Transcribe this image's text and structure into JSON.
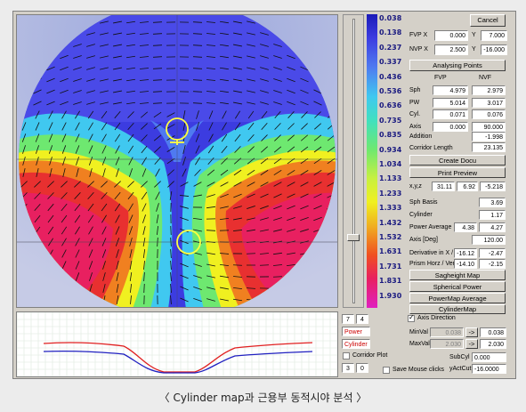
{
  "legend": {
    "values": [
      "0.038",
      "0.138",
      "0.237",
      "0.337",
      "0.436",
      "0.536",
      "0.636",
      "0.735",
      "0.835",
      "0.934",
      "1.034",
      "1.133",
      "1.233",
      "1.333",
      "1.432",
      "1.532",
      "1.631",
      "1.731",
      "1.831",
      "1.930"
    ]
  },
  "panel": {
    "cancel": "Cancel",
    "fvp_label": "FVP",
    "nvp_label": "NVP",
    "x_label": "X",
    "y_label": "Y",
    "fvp_x": "0.000",
    "fvp_y": "7.000",
    "nvp_x": "2.500",
    "nvp_y": "-16.000",
    "analysing": "Analysing Points",
    "col_fvp": "FVP",
    "col_nvf": "NVF",
    "rows": [
      {
        "label": "Sph",
        "a": "4.979",
        "b": "2.979"
      },
      {
        "label": "PW",
        "a": "5.014",
        "b": "3.017"
      },
      {
        "label": "Cyl.",
        "a": "0.071",
        "b": "0.076"
      },
      {
        "label": "Axis",
        "a": "0.000",
        "b": "90.000"
      }
    ],
    "addition_label": "Addition",
    "addition": "-1.998",
    "corridor_label": "Corridor Length",
    "corridor": "23.135",
    "create_docu": "Create Docu",
    "print_preview": "Print Preview",
    "xyz_label": "x,y,z",
    "x": "31.11",
    "y": "6.92",
    "z": "-5.218",
    "sph_basis_label": "Sph Basis",
    "sph_basis": "3.69",
    "cylinder_label": "Cylinder",
    "cylinder": "1.17",
    "power_avg_label": "Power Average",
    "power_avg_a": "4.38",
    "power_avg_b": "4.27",
    "axis_deg_label": "Axis [Deg]",
    "axis_deg": "120.00",
    "deriv_label": "Derivative in X / Y",
    "deriv_a": "-16.12",
    "deriv_b": "-2.47",
    "prism_label": "Prism Horz / Vert",
    "prism_a": "-14.10",
    "prism_b": "-2.15",
    "btn_sagheight": "Sagheight Map",
    "btn_spherical": "Spherical Power",
    "btn_powermap": "PowerMap Average",
    "btn_cylindermap": "CylinderMap"
  },
  "bottom": {
    "field_7": "7",
    "field_4": "4",
    "power": "Power",
    "cylinder": "Cylinder",
    "corridor_plot": "Corridor Plot",
    "field_3": "3",
    "field_0": "0",
    "axis_direction": "Axis Direction",
    "minval_label": "MinVal",
    "minval_dim": "0.038",
    "minval": "0.038",
    "maxval_label": "MaxVal",
    "maxval_dim": "2.030",
    "maxval": "2.030",
    "arrow": "->",
    "subcyl_label": "SubCyl",
    "subcyl": "0.000",
    "yactcut_label": "yActCut",
    "yactcut": "-16.0000",
    "save_mouse": "Save Mouse clicks"
  },
  "caption": "〈 Cylinder map과 근용부 동적시야 분석 〉",
  "colors": {
    "red_curve": "#e02020",
    "blue_curve": "#2020c0"
  }
}
